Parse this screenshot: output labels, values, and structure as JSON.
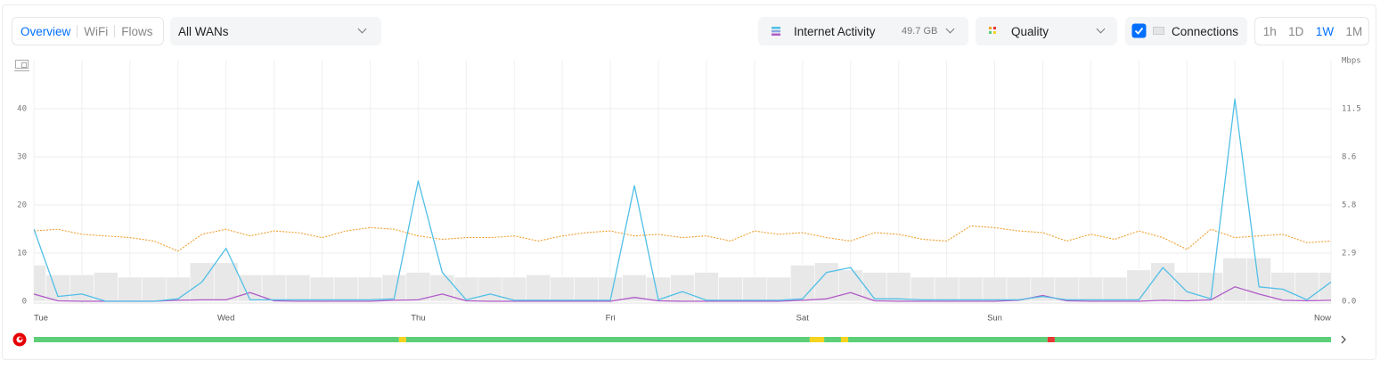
{
  "controls": {
    "tabs": [
      "Overview",
      "WiFi",
      "Flows"
    ],
    "active_tab": 0,
    "wan_select": "All WANs",
    "internet_activity": {
      "label": "Internet Activity",
      "total": "49.7 GB"
    },
    "quality": "Quality",
    "connections": "Connections",
    "connections_checked": true,
    "ranges": [
      "1h",
      "1D",
      "1W",
      "1M"
    ],
    "active_range": 2
  },
  "chart_data": {
    "type": "line",
    "categories": [
      "Tue",
      null,
      null,
      null,
      null,
      null,
      null,
      null,
      "Wed",
      null,
      null,
      null,
      null,
      null,
      null,
      null,
      "Thu",
      null,
      null,
      null,
      null,
      null,
      null,
      null,
      "Fri",
      null,
      null,
      null,
      null,
      null,
      null,
      null,
      "Sat",
      null,
      null,
      null,
      null,
      null,
      null,
      null,
      "Sun",
      null,
      null,
      null,
      null,
      null,
      null,
      null,
      null,
      null,
      null,
      null,
      null,
      null,
      "Now"
    ],
    "ylim": [
      0,
      50
    ],
    "yticks": [
      0,
      10,
      20,
      30,
      40
    ],
    "y2label": "Mbps",
    "y2lim": [
      0,
      14.375
    ],
    "y2ticks": [
      {
        "value": 0,
        "label": "0.0"
      },
      {
        "value": 2.875,
        "label": "2.9"
      },
      {
        "value": 5.75,
        "label": "5.8"
      },
      {
        "value": 8.625,
        "label": "8.6"
      },
      11.5
    ],
    "grid": true,
    "series": [
      {
        "type": "bar",
        "color": "#e8e8e8",
        "values": [
          7.5,
          5.5,
          5.5,
          6,
          5,
          5,
          5,
          8,
          8,
          5.5,
          5.5,
          5.5,
          5,
          5,
          5,
          5.5,
          6,
          5.5,
          5,
          5,
          5,
          5.5,
          5,
          5,
          5,
          5.5,
          5,
          5.5,
          6,
          5,
          5,
          5,
          7.5,
          8,
          6.5,
          6,
          6,
          5,
          5,
          5,
          5,
          5,
          5,
          5,
          5,
          5,
          6.5,
          8,
          6,
          6,
          9,
          9,
          6,
          6,
          6
        ]
      },
      {
        "type": "line",
        "color": "#f0a030",
        "dash": true,
        "axis": "y2",
        "values": [
          4.2,
          4.3,
          4.0,
          3.9,
          3.8,
          3.6,
          3.0,
          4.0,
          4.3,
          3.9,
          4.2,
          4.1,
          3.8,
          4.2,
          4.4,
          4.3,
          3.9,
          3.7,
          3.8,
          3.8,
          3.9,
          3.6,
          3.9,
          4.1,
          4.2,
          3.9,
          4.0,
          3.8,
          3.9,
          3.6,
          4.2,
          4.0,
          4.1,
          3.8,
          3.6,
          4.1,
          4.0,
          3.7,
          3.6,
          4.5,
          4.4,
          4.2,
          4.1,
          3.6,
          4.0,
          3.7,
          4.2,
          3.8,
          3.1,
          4.3,
          3.8,
          3.9,
          4.0,
          3.5,
          3.6
        ]
      },
      {
        "type": "line",
        "color": "#b05cc8",
        "values": [
          1.5,
          0.1,
          0,
          0,
          0,
          0,
          0.2,
          0.3,
          0.3,
          1.8,
          0.1,
          0,
          0,
          0,
          0,
          0.2,
          0.3,
          1.5,
          0.1,
          0,
          0,
          0,
          0,
          0,
          0,
          0.8,
          0.1,
          0,
          0,
          0,
          0,
          0,
          0.2,
          0.5,
          1.8,
          0.1,
          0,
          0,
          0,
          0,
          0,
          0.2,
          1.2,
          0.1,
          0,
          0,
          0,
          0.2,
          0.1,
          0.3,
          3,
          1.5,
          0.2,
          0.1,
          0.2
        ]
      },
      {
        "type": "line",
        "color": "#50bfe6",
        "values": [
          15,
          1,
          1.5,
          0,
          0,
          0,
          0.5,
          4,
          11,
          0.3,
          0.3,
          0.3,
          0.3,
          0.3,
          0.3,
          0.5,
          25,
          6,
          0.3,
          1.5,
          0.2,
          0.2,
          0.2,
          0.2,
          0.2,
          24,
          0.3,
          2,
          0.2,
          0.2,
          0.2,
          0.2,
          0.5,
          6,
          7,
          0.5,
          0.5,
          0.3,
          0.3,
          0.3,
          0.3,
          0.3,
          1,
          0.3,
          0.3,
          0.3,
          0.3,
          7,
          2,
          0.5,
          42,
          3,
          2.5,
          0.3,
          4
        ]
      }
    ],
    "quality_bar": [
      {
        "from": 0,
        "to": 15.2,
        "color": "#5ccf78"
      },
      {
        "from": 15.2,
        "to": 15.5,
        "color": "#f5d31f"
      },
      {
        "from": 15.5,
        "to": 32.3,
        "color": "#5ccf78"
      },
      {
        "from": 32.3,
        "to": 32.9,
        "color": "#f5d31f"
      },
      {
        "from": 32.9,
        "to": 33.6,
        "color": "#5ccf78"
      },
      {
        "from": 33.6,
        "to": 33.9,
        "color": "#f5d31f"
      },
      {
        "from": 33.9,
        "to": 42.2,
        "color": "#5ccf78"
      },
      {
        "from": 42.2,
        "to": 42.5,
        "color": "#e53935"
      },
      {
        "from": 42.5,
        "to": 54,
        "color": "#5ccf78"
      }
    ]
  }
}
